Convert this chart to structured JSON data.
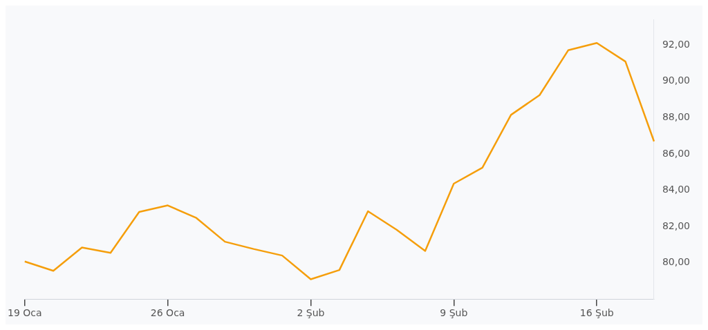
{
  "chart_data": {
    "type": "line",
    "categories": [
      "19 Oca",
      null,
      null,
      null,
      null,
      "26 Oca",
      null,
      null,
      null,
      null,
      "2 Şub",
      null,
      null,
      null,
      null,
      "9 Şub",
      null,
      null,
      null,
      null,
      "16 Şub",
      null,
      null
    ],
    "series": [
      {
        "color": "#f59e0b",
        "values": [
          80.07,
          79.56,
          80.84,
          80.55,
          82.8,
          83.16,
          82.47,
          81.16,
          80.76,
          80.4,
          79.09,
          79.6,
          82.84,
          81.82,
          80.65,
          84.36,
          85.24,
          88.15,
          89.24,
          91.71,
          92.11,
          91.09,
          86.69
        ]
      }
    ],
    "ylim": [
      78,
      93.4
    ],
    "yticks": [
      {
        "value": 80,
        "label": "80,00"
      },
      {
        "value": 82,
        "label": "82,00"
      },
      {
        "value": 84,
        "label": "84,00"
      },
      {
        "value": 86,
        "label": "86,00"
      },
      {
        "value": 88,
        "label": "88,00"
      },
      {
        "value": 90,
        "label": "90,00"
      },
      {
        "value": 92,
        "label": "92,00"
      }
    ],
    "grid": false,
    "legend": false,
    "marker": "none",
    "line_style": "solid"
  }
}
